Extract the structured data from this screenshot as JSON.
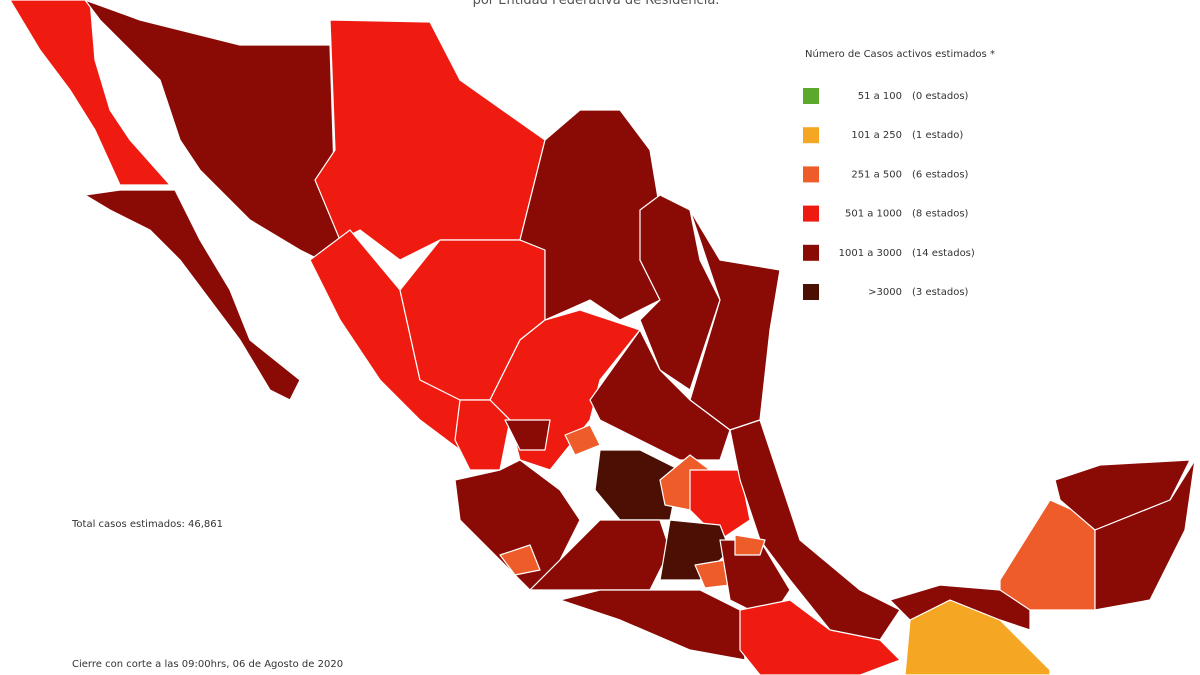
{
  "header": {
    "title": "por Entidad Federativa de Residencia."
  },
  "legend": {
    "title": "Número de Casos activos estimados *",
    "items": [
      {
        "range": "51 a 100",
        "count": "(0 estados)",
        "color": "#5aa92b"
      },
      {
        "range": "101 a 250",
        "count": "(1 estado)",
        "color": "#f5a623"
      },
      {
        "range": "251 a 500",
        "count": "(6 estados)",
        "color": "#ee5c2a"
      },
      {
        "range": "501 a 1000",
        "count": "(8 estados)",
        "color": "#ef1b10"
      },
      {
        "range": "1001 a 3000",
        "count": "(14 estados)",
        "color": "#8a0b06"
      },
      {
        "range": ">3000",
        "count": "(3 estados)",
        "color": "#4b0f03"
      }
    ]
  },
  "total": "Total casos estimados: 46,861",
  "footer": "Cierre con corte a las 09:00hrs, 06 de Agosto de 2020"
}
